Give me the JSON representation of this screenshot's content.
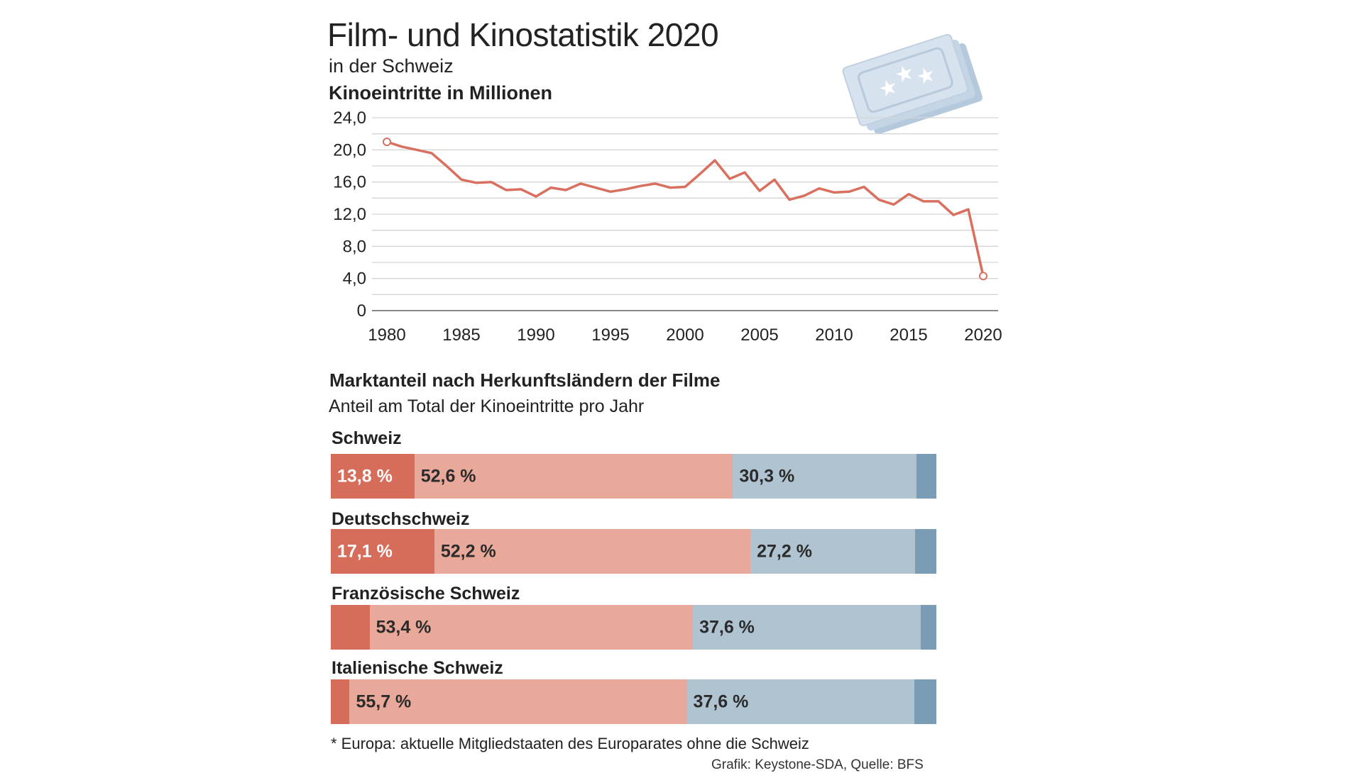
{
  "header": {
    "title": "Film- und Kinostatistik 2020",
    "subtitle": "in der Schweiz"
  },
  "colors": {
    "line": "#d9705f",
    "grid": "#d5d5d5",
    "schweiz": "#d66d5b",
    "europa": "#e8a99a",
    "usa": "#afc3d0",
    "andere": "#7a9db5",
    "ticket": "#c9d8e6"
  },
  "chart_data": {
    "type": "line",
    "title": "Kinoeintritte in Millionen",
    "ylim": [
      0,
      24
    ],
    "yticks": [
      0,
      4,
      8,
      12,
      16,
      20,
      24
    ],
    "ytick_labels": [
      "0",
      "4,0",
      "8,0",
      "12,0",
      "16,0",
      "20,0",
      "24,0"
    ],
    "xlim": [
      1979,
      2021
    ],
    "xticks": [
      1980,
      1985,
      1990,
      1995,
      2000,
      2005,
      2010,
      2015,
      2020
    ],
    "xtick_labels": [
      "1980",
      "1985",
      "1990",
      "1995",
      "2000",
      "2005",
      "2010",
      "2015",
      "2020"
    ],
    "grid": true,
    "x": [
      1980,
      1981,
      1982,
      1983,
      1984,
      1985,
      1986,
      1987,
      1988,
      1989,
      1990,
      1991,
      1992,
      1993,
      1994,
      1995,
      1996,
      1997,
      1998,
      1999,
      2000,
      2001,
      2002,
      2003,
      2004,
      2005,
      2006,
      2007,
      2008,
      2009,
      2010,
      2011,
      2012,
      2013,
      2014,
      2015,
      2016,
      2017,
      2018,
      2019,
      2020
    ],
    "y": [
      21.0,
      20.4,
      20.0,
      19.6,
      18.0,
      16.3,
      15.9,
      16.0,
      15.0,
      15.1,
      14.2,
      15.3,
      15.0,
      15.8,
      15.3,
      14.8,
      15.1,
      15.5,
      15.8,
      15.3,
      15.4,
      17.0,
      18.7,
      16.4,
      17.2,
      14.9,
      16.3,
      13.8,
      14.3,
      15.2,
      14.7,
      14.8,
      15.4,
      13.8,
      13.2,
      14.5,
      13.6,
      13.6,
      11.9,
      12.6,
      4.3
    ],
    "highlighted_points": [
      1980,
      2020
    ]
  },
  "share": {
    "title": "Marktanteil nach Herkunftsländern der Filme",
    "subtitle": "Anteil am Total der Kinoeintritte pro Jahr",
    "rows": [
      {
        "region": "Schweiz",
        "segments": [
          {
            "key": "schweiz",
            "value": 13.8,
            "label": "13,8 %"
          },
          {
            "key": "europa",
            "value": 52.6,
            "label": "52,6 %"
          },
          {
            "key": "usa",
            "value": 30.3,
            "label": "30,3 %"
          },
          {
            "key": "andere",
            "value": 3.3,
            "label": ""
          }
        ]
      },
      {
        "region": "Deutschschweiz",
        "segments": [
          {
            "key": "schweiz",
            "value": 17.1,
            "label": "17,1 %"
          },
          {
            "key": "europa",
            "value": 52.2,
            "label": "52,2 %"
          },
          {
            "key": "usa",
            "value": 27.2,
            "label": "27,2 %"
          },
          {
            "key": "andere",
            "value": 3.5,
            "label": ""
          }
        ]
      },
      {
        "region": "Französische Schweiz",
        "segments": [
          {
            "key": "schweiz",
            "value": 6.4,
            "label": ""
          },
          {
            "key": "europa",
            "value": 53.4,
            "label": "53,4 %"
          },
          {
            "key": "usa",
            "value": 37.6,
            "label": "37,6 %"
          },
          {
            "key": "andere",
            "value": 2.6,
            "label": ""
          }
        ]
      },
      {
        "region": "Italienische Schweiz",
        "segments": [
          {
            "key": "schweiz",
            "value": 3.1,
            "label": ""
          },
          {
            "key": "europa",
            "value": 55.7,
            "label": "55,7 %"
          },
          {
            "key": "usa",
            "value": 37.6,
            "label": "37,6 %"
          },
          {
            "key": "andere",
            "value": 3.6,
            "label": ""
          }
        ]
      }
    ]
  },
  "footer": {
    "footnote": "* Europa: aktuelle Mitgliedstaaten des Europarates ohne die Schweiz",
    "credit": "Grafik: Keystone-SDA, Quelle: BFS"
  }
}
